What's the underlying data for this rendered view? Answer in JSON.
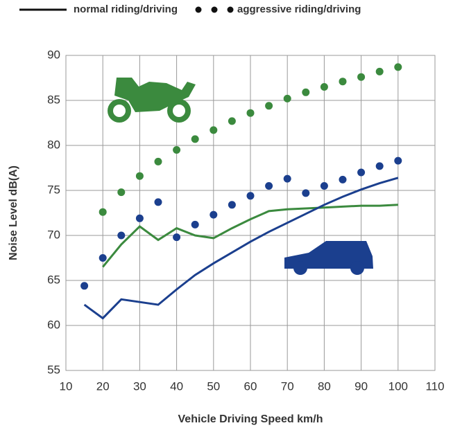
{
  "chart_data": {
    "type": "line",
    "x_label": "Vehicle Driving Speed km/h",
    "y_label": "Noise Level dB(A)",
    "legend": [
      {
        "label": "normal riding/driving",
        "style": "line"
      },
      {
        "label": "aggressive riding/driving",
        "style": "dots"
      }
    ],
    "xlim": [
      10,
      110
    ],
    "xticks": [
      10,
      20,
      30,
      40,
      50,
      60,
      70,
      80,
      90,
      100,
      110
    ],
    "ylim": [
      55,
      90
    ],
    "yticks": [
      55,
      60,
      65,
      70,
      75,
      80,
      85,
      90
    ],
    "grid": true,
    "series": [
      {
        "style": "line",
        "color": "#3b8a3e",
        "x": [
          20,
          25,
          30,
          35,
          40,
          45,
          50,
          55,
          60,
          65,
          70,
          75,
          80,
          85,
          90,
          95,
          100
        ],
        "values": [
          66.5,
          69,
          71,
          69.5,
          70.8,
          70,
          69.7,
          70.8,
          71.8,
          72.7,
          72.9,
          73,
          73.1,
          73.2,
          73.3,
          73.3,
          73.4
        ]
      },
      {
        "style": "dots",
        "color": "#3b8a3e",
        "x": [
          20,
          25,
          30,
          35,
          40,
          45,
          50,
          55,
          60,
          65,
          70,
          75,
          80,
          85,
          90,
          95,
          100
        ],
        "values": [
          72.6,
          74.8,
          76.6,
          78.2,
          79.5,
          80.7,
          81.7,
          82.7,
          83.6,
          84.4,
          85.2,
          85.9,
          86.5,
          87.1,
          87.6,
          88.2,
          88.7
        ]
      },
      {
        "style": "line",
        "color": "#1b3f8e",
        "x": [
          15,
          20,
          25,
          30,
          35,
          40,
          45,
          50,
          55,
          60,
          65,
          70,
          75,
          80,
          85,
          90,
          95,
          100
        ],
        "values": [
          62.3,
          60.8,
          62.9,
          62.6,
          62.3,
          64,
          65.6,
          66.9,
          68.1,
          69.3,
          70.4,
          71.4,
          72.4,
          73.4,
          74.3,
          75.1,
          75.8,
          76.4
        ]
      },
      {
        "style": "dots",
        "color": "#1b3f8e",
        "x": [
          15,
          20,
          25,
          30,
          35,
          40,
          45,
          50,
          55,
          60,
          65,
          70,
          75,
          80,
          85,
          90,
          95,
          100
        ],
        "values": [
          64.4,
          67.5,
          70,
          71.9,
          73.7,
          69.8,
          71.2,
          72.3,
          73.4,
          74.4,
          75.5,
          76.3,
          74.7,
          75.5,
          76.2,
          77,
          77.7,
          78.3
        ]
      }
    ]
  }
}
